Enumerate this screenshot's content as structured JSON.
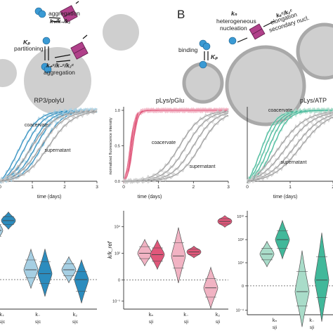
{
  "colors": {
    "rp3": "#2b8cbe",
    "rp3_light": "#a6cfe3",
    "plys_pglu": "#e0577a",
    "plys_pglu_light": "#f1b3c3",
    "plys_atp": "#41b89a",
    "plys_atp_light": "#a9dcc9",
    "supernatant": "#9a9a9a",
    "droplet": "#cfcfcf",
    "droplet_edge": "#a9a9a9",
    "monomer": "#3a9ad4",
    "aggregate": "#b0408a"
  },
  "schematic": {
    "panel_b_letter": "B",
    "label_aggregation_top": "aggregation",
    "label_rates_top": "k₊/k₋/k₂",
    "label_Kp": "Kₚ",
    "label_partitioning": "partitioning",
    "label_rates_bottom": "k₊ᶜ/k₋ᶜ/k₂ᶜ",
    "label_aggregation_bottom": "aggregation",
    "label_binding": "binding",
    "label_Kp_b": "Kₚ",
    "label_kn": "kₙ",
    "label_heterogeneous": "heterogeneous",
    "label_nucleation": "nucleation",
    "label_ke_k2": "kₑᶜ/k₂ᶜ",
    "label_elongation": "elongation",
    "label_secondary": "secondary nucl."
  },
  "chart_data": [
    {
      "type": "line",
      "title": "RP3/polyU",
      "xlabel": "time (days)",
      "ylabel": "",
      "xlim": [
        0,
        3
      ],
      "ylim": [
        0,
        1.05
      ],
      "x_ticks": [
        "0",
        "1",
        "2",
        "3"
      ],
      "y_ticks": [],
      "series": [
        {
          "name": "coacervate",
          "midpoints": [
            0.55,
            0.75,
            0.95,
            1.1,
            1.3
          ],
          "rate": 3.2
        },
        {
          "name": "supernatant",
          "midpoints": [
            0.95,
            1.25,
            1.5
          ],
          "rate": 2.6
        }
      ]
    },
    {
      "type": "line",
      "title": "pLys/pGlu",
      "xlabel": "time (days)",
      "ylabel": "normalized fluorescence intensity",
      "xlim": [
        0,
        3
      ],
      "ylim": [
        0,
        1.05
      ],
      "x_ticks": [
        "0",
        "1",
        "2",
        "3"
      ],
      "y_ticks": [
        "0.0",
        "0.5",
        "1.0"
      ],
      "series": [
        {
          "name": "coacervate",
          "midpoints": [
            0.18,
            0.2,
            0.22,
            0.24,
            0.26
          ],
          "rate": 14
        },
        {
          "name": "supernatant",
          "midpoints": [
            1.6,
            1.8,
            2.0,
            2.2
          ],
          "rate": 3.2
        }
      ]
    },
    {
      "type": "line",
      "title": "pLys/ATP",
      "xlabel": "time (days)",
      "ylabel": "",
      "xlim": [
        0,
        2
      ],
      "ylim": [
        0,
        1.05
      ],
      "x_ticks": [
        "0",
        "1",
        "2"
      ],
      "y_ticks": [],
      "series": [
        {
          "name": "coacervate",
          "midpoints": [
            0.3,
            0.4,
            0.5,
            0.6
          ],
          "rate": 5.5
        },
        {
          "name": "supernatant",
          "midpoints": [
            0.7,
            0.9,
            1.1,
            1.25
          ],
          "rate": 3.0
        }
      ]
    }
  ],
  "violin_data": [
    {
      "ylabel": "",
      "y_ticks": [],
      "baseline": 0,
      "log_min": -1.5,
      "log_max": 3.5,
      "groups": [
        {
          "label": "k₊",
          "sub": "s|c",
          "supernatant": [
            2.2,
            2.5,
            2.8
          ],
          "coacervate": [
            2.8,
            3.0,
            3.2
          ]
        },
        {
          "label": "k₋",
          "sub": "s|c",
          "supernatant": [
            0.1,
            0.5,
            1.0
          ],
          "coacervate": [
            -0.2,
            0.3,
            0.9
          ]
        },
        {
          "label": "k₂",
          "sub": "s|c",
          "supernatant": [
            0.2,
            0.5,
            0.8
          ],
          "coacervate": [
            -0.6,
            0.0,
            0.4
          ]
        }
      ]
    },
    {
      "ylabel": "k/k_ref",
      "y_ticks": [
        "10⁻¹",
        "0",
        "10²",
        "10⁴"
      ],
      "y_tick_values": [
        -1.6,
        0,
        2,
        4
      ],
      "log_min": -2.2,
      "log_max": 5.2,
      "baseline": 0,
      "groups": [
        {
          "label": "kₙ",
          "sub": "s|i",
          "supernatant": [
            1.6,
            2.0,
            2.5
          ],
          "coacervate": [
            1.4,
            1.9,
            2.4
          ]
        },
        {
          "label": "k₋",
          "sub": "s|i",
          "supernatant": [
            0.9,
            1.8,
            2.8
          ],
          "coacervate": [
            1.9,
            2.1,
            2.3
          ]
        },
        {
          "label": "k₂",
          "sub": "s|i",
          "supernatant": [
            -1.3,
            -0.6,
            0.1
          ],
          "coacervate": [
            4.2,
            4.4,
            4.6
          ]
        }
      ]
    },
    {
      "ylabel": "",
      "y_ticks": [
        "10⁻⁴",
        "0",
        "10⁴",
        "10⁸",
        "10¹²"
      ],
      "y_tick_values": [
        -4.2,
        0,
        4,
        8,
        12
      ],
      "log_min": -5,
      "log_max": 13,
      "baseline": 0,
      "groups": [
        {
          "label": "kₙ",
          "sub": "s|i",
          "supernatant": [
            4.5,
            5.5,
            6.5
          ],
          "coacervate": [
            6.5,
            8.0,
            9.5
          ]
        },
        {
          "label": "k₋",
          "sub": "s|i",
          "supernatant": [
            -3.5,
            -1.0,
            2.5
          ],
          "coacervate": [
            -2.0,
            1.0,
            5.0
          ]
        }
      ]
    }
  ]
}
